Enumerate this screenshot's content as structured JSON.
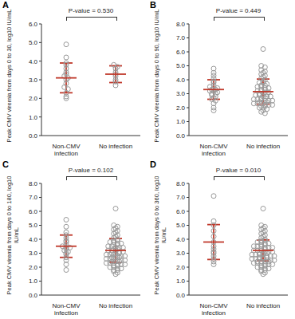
{
  "chart_data": [
    {
      "type": "scatter",
      "title": "A",
      "annotation": "P-value = 0.530",
      "y_label": "Peak CMV viremia from days 0 to 30, log10 IU/mL",
      "categories": [
        "Non-CMV infection",
        "No infection"
      ],
      "color": "#9a9a9a",
      "marker": "open_circle",
      "ylim": [
        0,
        6
      ],
      "yticks": [
        {
          "value": 0,
          "label": "0.0"
        },
        {
          "value": 1,
          "label": "1.0"
        },
        {
          "value": 2,
          "label": "2.0"
        },
        {
          "value": 3,
          "label": "3.0"
        },
        {
          "value": 4,
          "label": "4.0"
        },
        {
          "value": 5,
          "label": "5.0"
        },
        {
          "value": 6,
          "label": "6.0"
        }
      ],
      "groups": [
        {
          "values": [
            4.9,
            4.2,
            3.9,
            3.8,
            3.6,
            3.4,
            3.3,
            3.2,
            3.1,
            3.0,
            2.8,
            2.6,
            2.5,
            2.3,
            2.1,
            2.0
          ],
          "mean": 3.1,
          "sd": 0.8
        },
        {
          "values": [
            3.8,
            3.7,
            3.6,
            3.4,
            3.3,
            3.2,
            3.0,
            2.9,
            2.7
          ],
          "mean": 3.3,
          "sd": 0.45
        }
      ]
    },
    {
      "type": "scatter",
      "title": "B",
      "annotation": "P-value = 0.449",
      "y_label": "Peak CMV viremia from days 0 to 90, log10 IU/mL",
      "categories": [
        "Non-CMV infection",
        "No infection"
      ],
      "color": "#9a9a9a",
      "marker": "open_circle",
      "ylim": [
        0,
        8
      ],
      "yticks": [
        {
          "value": 0,
          "label": "0.0"
        },
        {
          "value": 1,
          "label": "1.0"
        },
        {
          "value": 2,
          "label": "2.0"
        },
        {
          "value": 3,
          "label": "3.0"
        },
        {
          "value": 4,
          "label": "4.0"
        },
        {
          "value": 5,
          "label": "5.0"
        },
        {
          "value": 6,
          "label": "6.0"
        },
        {
          "value": 7,
          "label": "7.0"
        },
        {
          "value": 8,
          "label": "8.0"
        }
      ],
      "groups": [
        {
          "values": [
            4.8,
            4.5,
            4.3,
            4.1,
            3.9,
            3.8,
            3.6,
            3.5,
            3.4,
            3.4,
            3.3,
            3.3,
            3.2,
            3.2,
            3.1,
            3.0,
            3.0,
            2.9,
            2.8,
            2.7,
            2.6,
            2.5,
            2.3,
            2.0,
            1.8
          ],
          "mean": 3.3,
          "sd": 0.7
        },
        {
          "values": [
            6.2,
            5.0,
            4.9,
            4.7,
            4.6,
            4.5,
            4.4,
            4.3,
            4.2,
            4.1,
            4.0,
            3.9,
            3.8,
            3.8,
            3.7,
            3.6,
            3.6,
            3.5,
            3.5,
            3.4,
            3.4,
            3.3,
            3.3,
            3.2,
            3.2,
            3.1,
            3.1,
            3.0,
            3.0,
            3.0,
            2.9,
            2.9,
            2.8,
            2.8,
            2.8,
            2.7,
            2.7,
            2.6,
            2.6,
            2.6,
            2.5,
            2.5,
            2.5,
            2.4,
            2.4,
            2.4,
            2.3,
            2.3,
            2.3,
            2.2,
            2.2,
            2.2,
            2.1,
            2.1,
            2.0,
            2.0,
            1.9,
            1.8,
            1.7,
            1.6
          ],
          "mean": 3.15,
          "sd": 0.9
        }
      ]
    },
    {
      "type": "scatter",
      "title": "C",
      "annotation": "P-value = 0.102",
      "y_label": "Peak CMV viremia from days 0 to 180, log10 IU/mL",
      "categories": [
        "Non-CMV infection",
        "No infection"
      ],
      "color": "#9a9a9a",
      "marker": "open_circle",
      "ylim": [
        0,
        8
      ],
      "yticks": [
        {
          "value": 0,
          "label": "0.0"
        },
        {
          "value": 1,
          "label": "1.0"
        },
        {
          "value": 2,
          "label": "2.0"
        },
        {
          "value": 3,
          "label": "3.0"
        },
        {
          "value": 4,
          "label": "4.0"
        },
        {
          "value": 5,
          "label": "5.0"
        },
        {
          "value": 6,
          "label": "6.0"
        },
        {
          "value": 7,
          "label": "7.0"
        },
        {
          "value": 8,
          "label": "8.0"
        }
      ],
      "groups": [
        {
          "values": [
            5.4,
            4.9,
            4.5,
            4.3,
            4.1,
            3.9,
            3.8,
            3.6,
            3.5,
            3.4,
            3.4,
            3.3,
            3.2,
            3.1,
            3.0,
            2.9,
            2.7,
            2.5,
            2.2,
            1.8
          ],
          "mean": 3.5,
          "sd": 0.8
        },
        {
          "values": [
            6.2,
            5.0,
            4.9,
            4.8,
            4.7,
            4.6,
            4.5,
            4.4,
            4.3,
            4.2,
            4.1,
            4.0,
            3.9,
            3.9,
            3.8,
            3.8,
            3.7,
            3.7,
            3.6,
            3.6,
            3.5,
            3.5,
            3.4,
            3.4,
            3.4,
            3.3,
            3.3,
            3.2,
            3.2,
            3.2,
            3.1,
            3.1,
            3.0,
            3.0,
            3.0,
            2.9,
            2.9,
            2.9,
            2.8,
            2.8,
            2.8,
            2.7,
            2.7,
            2.7,
            2.6,
            2.6,
            2.6,
            2.5,
            2.5,
            2.5,
            2.4,
            2.4,
            2.4,
            2.3,
            2.3,
            2.3,
            2.2,
            2.2,
            2.2,
            2.1,
            2.1,
            2.0,
            2.0,
            1.9,
            1.9,
            1.8,
            1.8,
            1.7,
            1.6,
            1.5
          ],
          "mean": 3.2,
          "sd": 0.85
        }
      ]
    },
    {
      "type": "scatter",
      "title": "D",
      "annotation": "P-value = 0.010",
      "y_label": "Peak CMV viremia from days 0 to 360, log10 IU/mL",
      "categories": [
        "Non-CMV infection",
        "No infection"
      ],
      "color": "#9a9a9a",
      "marker": "open_circle",
      "ylim": [
        0,
        8
      ],
      "yticks": [
        {
          "value": 0,
          "label": "0.0"
        },
        {
          "value": 1,
          "label": "1.0"
        },
        {
          "value": 2,
          "label": "2.0"
        },
        {
          "value": 3,
          "label": "3.0"
        },
        {
          "value": 4,
          "label": "4.0"
        },
        {
          "value": 5,
          "label": "5.0"
        },
        {
          "value": 6,
          "label": "6.0"
        },
        {
          "value": 7,
          "label": "7.0"
        },
        {
          "value": 8,
          "label": "8.0"
        }
      ],
      "groups": [
        {
          "values": [
            7.1,
            5.3,
            5.0,
            4.6,
            4.2,
            3.8,
            3.5,
            3.3,
            3.1,
            3.0,
            2.8,
            2.6,
            2.4,
            2.2
          ],
          "mean": 3.8,
          "sd": 1.25
        },
        {
          "values": [
            6.2,
            5.0,
            4.9,
            4.8,
            4.7,
            4.6,
            4.5,
            4.4,
            4.3,
            4.2,
            4.1,
            4.0,
            3.9,
            3.9,
            3.8,
            3.8,
            3.7,
            3.7,
            3.6,
            3.6,
            3.5,
            3.5,
            3.5,
            3.4,
            3.4,
            3.4,
            3.3,
            3.3,
            3.2,
            3.2,
            3.2,
            3.1,
            3.1,
            3.1,
            3.0,
            3.0,
            3.0,
            2.9,
            2.9,
            2.9,
            2.9,
            2.8,
            2.8,
            2.8,
            2.7,
            2.7,
            2.7,
            2.6,
            2.6,
            2.6,
            2.6,
            2.5,
            2.5,
            2.5,
            2.4,
            2.4,
            2.4,
            2.4,
            2.3,
            2.3,
            2.3,
            2.2,
            2.2,
            2.2,
            2.1,
            2.1,
            2.0,
            2.0,
            1.9,
            1.9,
            1.8,
            1.8,
            1.7,
            1.6,
            1.5
          ],
          "mean": 3.2,
          "sd": 0.75
        }
      ]
    }
  ]
}
